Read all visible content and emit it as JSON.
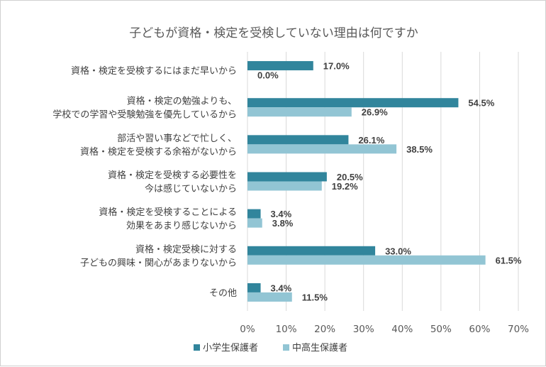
{
  "chart_data": {
    "type": "bar",
    "orientation": "horizontal",
    "title": "子どもが資格・検定を受検していない理由は何ですか",
    "categories": [
      [
        "資格・検定を受検するにはまだ早いから"
      ],
      [
        "資格・検定の勉強よりも、",
        "学校での学習や受験勉強を優先しているから"
      ],
      [
        "部活や習い事などで忙しく、",
        "資格・検定を受検する余裕がないから"
      ],
      [
        "資格・検定を受検する必要性を",
        "今は感じていないから"
      ],
      [
        "資格・検定を受検することによる",
        "効果をあまり感じないから"
      ],
      [
        "資格・検定受検に対する",
        "子どもの興味・関心があまりないから"
      ],
      [
        "その他"
      ]
    ],
    "series": [
      {
        "name": "小学生保護者",
        "color": "#31859c",
        "values": [
          17.0,
          54.5,
          26.1,
          20.5,
          3.4,
          33.0,
          3.4
        ]
      },
      {
        "name": "中高生保護者",
        "color": "#92c5d4",
        "values": [
          0.0,
          26.9,
          38.5,
          19.2,
          3.8,
          61.5,
          11.5
        ]
      }
    ],
    "xlim": [
      0,
      70
    ],
    "xticks": [
      0,
      10,
      20,
      30,
      40,
      50,
      60,
      70
    ],
    "tick_suffix": "%",
    "grid": true,
    "legend_position": "bottom"
  }
}
